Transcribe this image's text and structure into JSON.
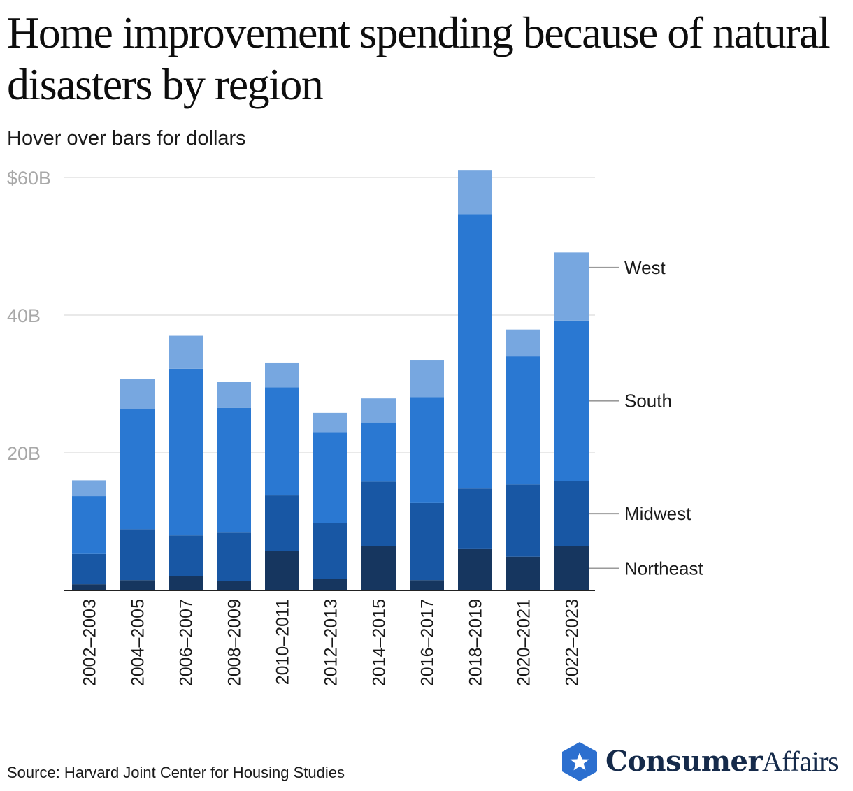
{
  "header": {
    "title": "Home improvement spending because of natural disasters by region",
    "subtitle": "Hover over bars for dollars"
  },
  "chart_data": {
    "type": "bar",
    "stacked": true,
    "categories": [
      "2002–2003",
      "2004–2005",
      "2006–2007",
      "2008–2009",
      "2010–2011",
      "2012–2013",
      "2014–2015",
      "2016–2017",
      "2018–2019",
      "2020–2021",
      "2022–2023"
    ],
    "series": [
      {
        "name": "Northeast",
        "color": "#16365f",
        "values": [
          0.9,
          1.5,
          2.1,
          1.4,
          5.7,
          1.7,
          6.4,
          1.5,
          6.1,
          4.9,
          6.4
        ]
      },
      {
        "name": "Midwest",
        "color": "#1857a4",
        "values": [
          4.4,
          7.4,
          5.9,
          7.0,
          8.1,
          8.1,
          9.4,
          11.2,
          8.7,
          10.5,
          9.5
        ]
      },
      {
        "name": "South",
        "color": "#2a78d2",
        "values": [
          8.4,
          17.4,
          24.2,
          18.1,
          15.7,
          13.2,
          8.6,
          15.4,
          39.9,
          18.6,
          23.3
        ]
      },
      {
        "name": "West",
        "color": "#77a7e0",
        "values": [
          2.3,
          4.4,
          4.8,
          3.8,
          3.6,
          2.8,
          3.5,
          5.4,
          6.3,
          3.9,
          9.9
        ]
      }
    ],
    "ylim": [
      0,
      60
    ],
    "yticks": [
      {
        "value": 60,
        "label": "$60B"
      },
      {
        "value": 40,
        "label": "40B"
      },
      {
        "value": 20,
        "label": "20B"
      }
    ],
    "xlabel": "",
    "ylabel": "",
    "legend": "direct-labels-right",
    "grid": true
  },
  "footer": {
    "source": "Source: Harvard Joint Center for Housing Studies"
  },
  "brand": {
    "name_bold": "Consumer",
    "name_light": "Affairs",
    "icon": "star-hexagon-icon",
    "color": "#2c6fcf"
  }
}
